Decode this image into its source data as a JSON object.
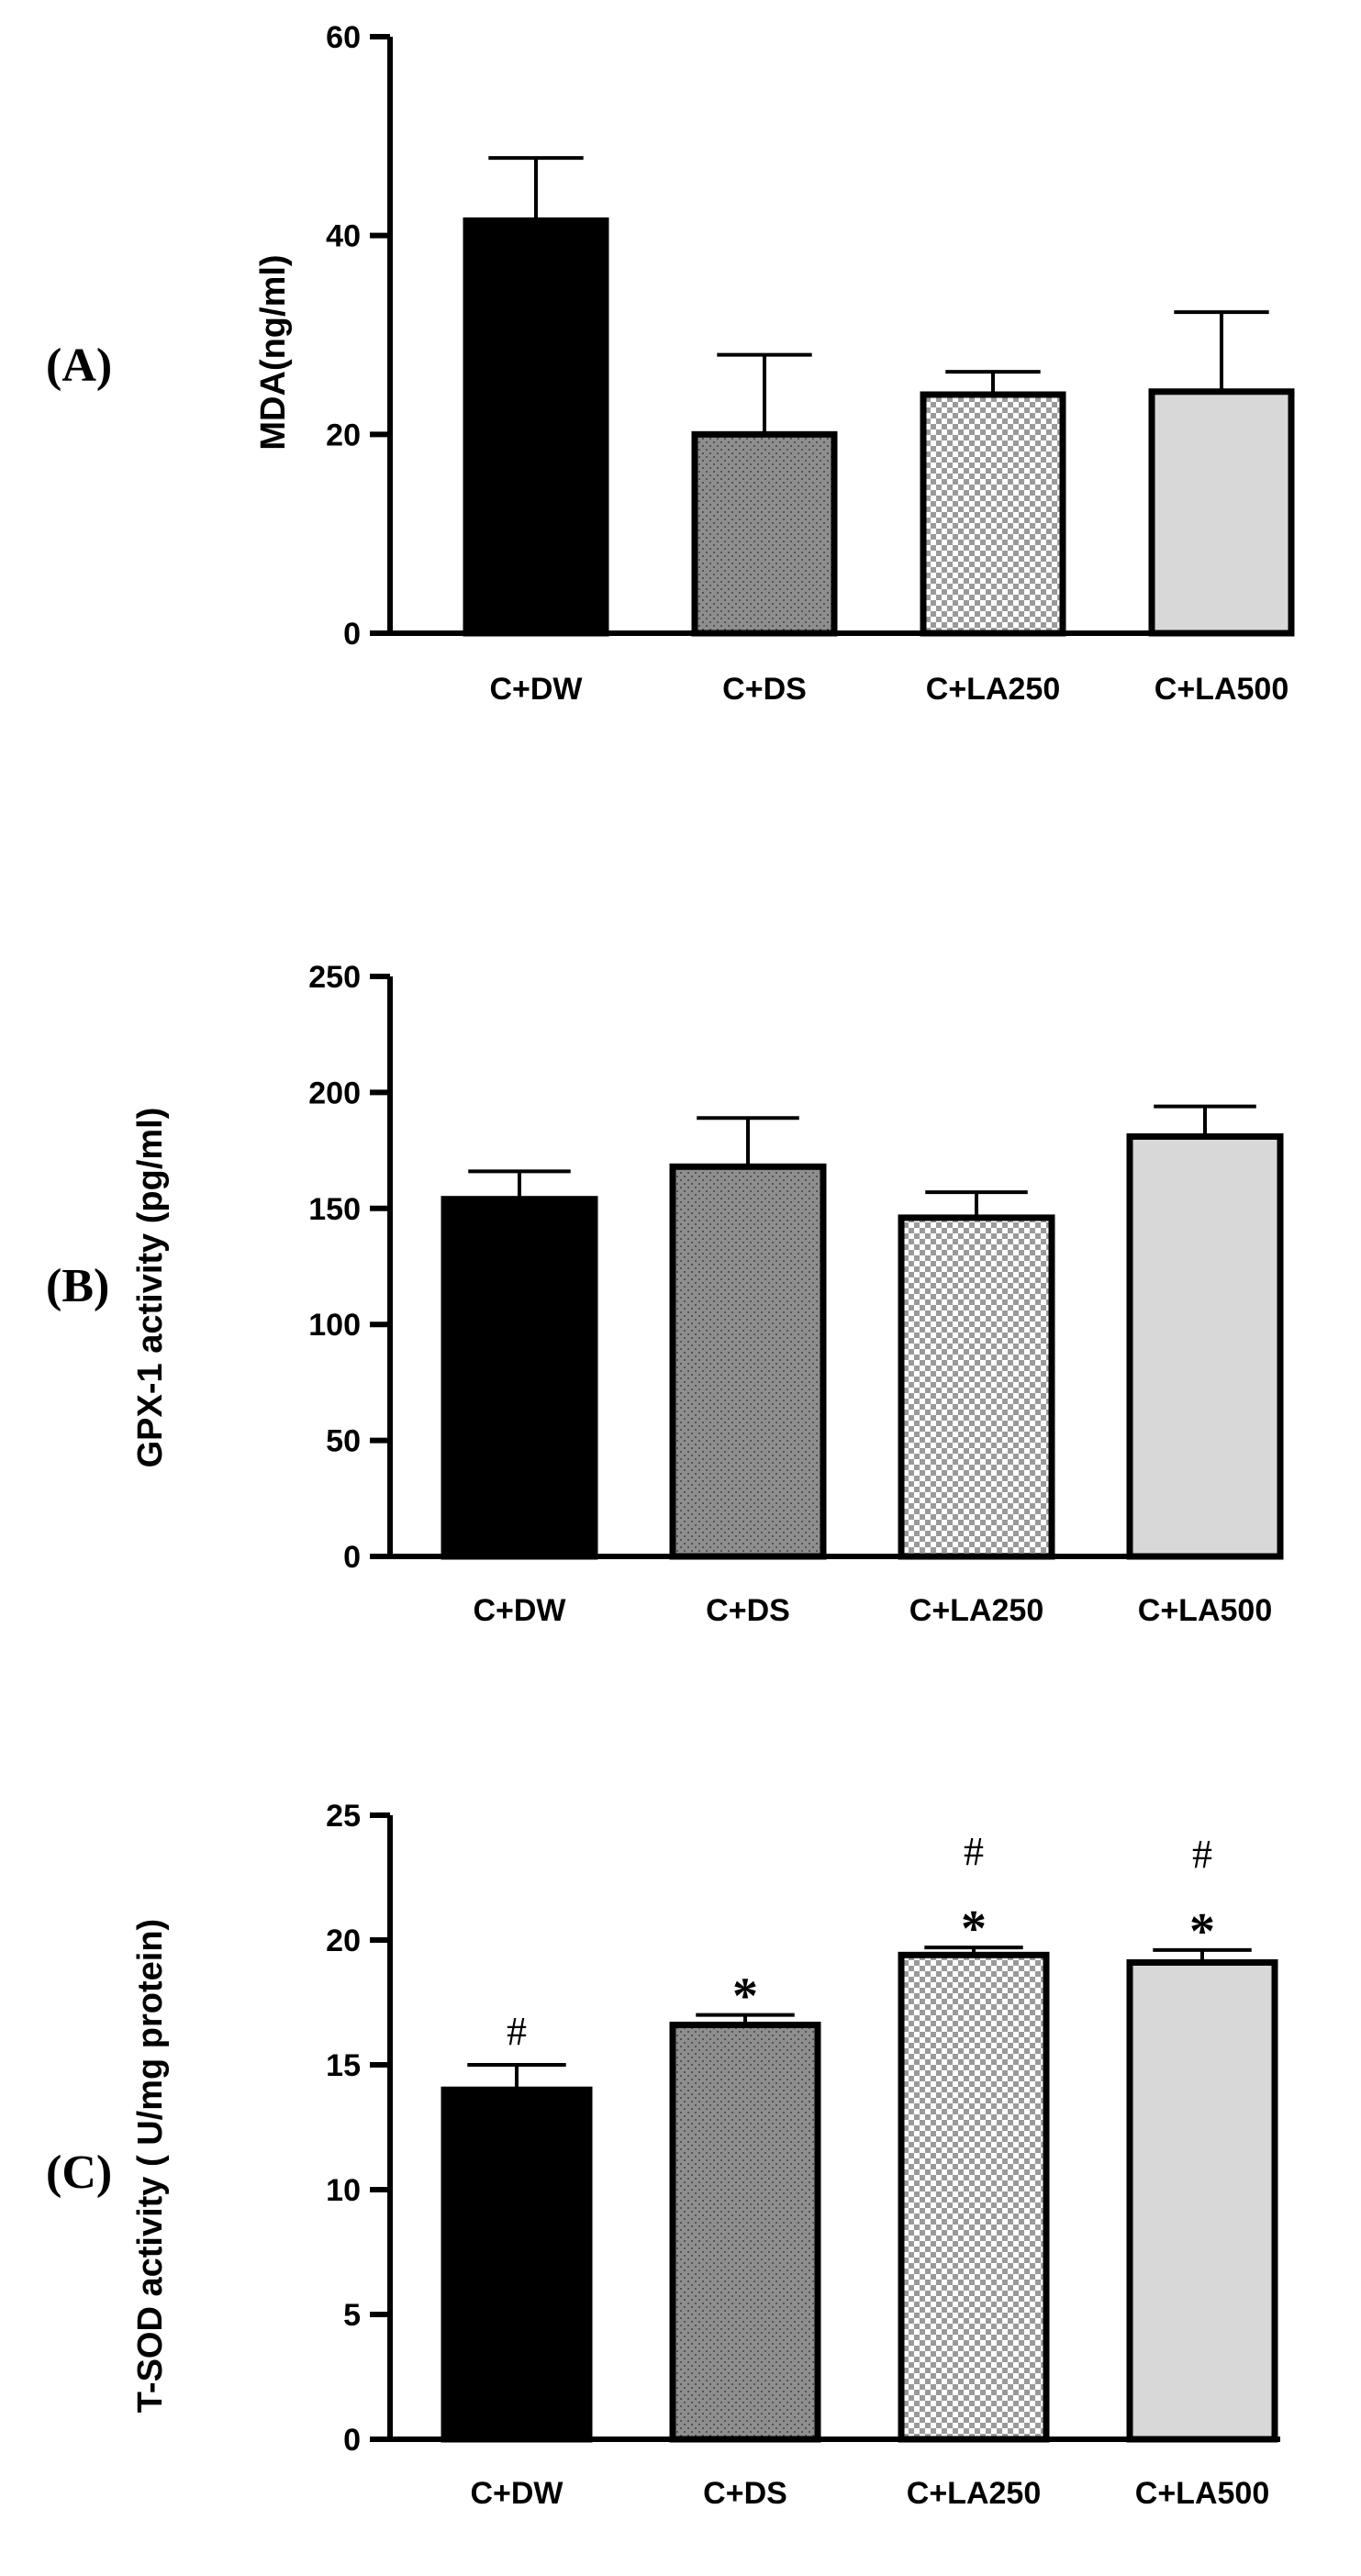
{
  "chart_data": [
    {
      "panel_label": "(A)",
      "type": "bar",
      "ylabel": "MDA(ng/ml)",
      "categories": [
        "C+DW",
        "C+DS",
        "C+LA250",
        "C+LA500"
      ],
      "values": [
        41.5,
        20,
        24,
        24.3
      ],
      "errors": [
        6.3,
        8.0,
        2.3,
        8.0
      ],
      "ylim": [
        0,
        60
      ],
      "yticks": [
        0,
        20,
        40,
        60
      ],
      "patterns": [
        "solid-black",
        "dots-gray",
        "checker",
        "solid-lightgray"
      ],
      "annotations": [
        [],
        [],
        [],
        []
      ]
    },
    {
      "panel_label": "(B)",
      "type": "bar",
      "ylabel": "GPX-1 activity (pg/ml)",
      "categories": [
        "C+DW",
        "C+DS",
        "C+LA250",
        "C+LA500"
      ],
      "values": [
        154,
        168,
        146,
        181
      ],
      "errors": [
        12,
        21,
        11,
        13
      ],
      "ylim": [
        0,
        250
      ],
      "yticks": [
        0,
        50,
        100,
        150,
        200,
        250
      ],
      "patterns": [
        "solid-black",
        "dots-gray",
        "checker",
        "solid-lightgray"
      ],
      "annotations": [
        [],
        [],
        [],
        []
      ]
    },
    {
      "panel_label": "(C)",
      "type": "bar",
      "ylabel": "T-SOD activity ( U/mg protein)",
      "categories": [
        "C+DW",
        "C+DS",
        "C+LA250",
        "C+LA500"
      ],
      "values": [
        14,
        16.6,
        19.4,
        19.1
      ],
      "errors": [
        1.0,
        0.4,
        0.3,
        0.5
      ],
      "ylim": [
        0,
        25
      ],
      "yticks": [
        0,
        5,
        10,
        15,
        20,
        25
      ],
      "patterns": [
        "solid-black",
        "dots-gray",
        "checker",
        "solid-lightgray"
      ],
      "annotations": [
        [
          "#"
        ],
        [
          "*"
        ],
        [
          "*",
          "#"
        ],
        [
          "*",
          "#"
        ]
      ]
    }
  ]
}
